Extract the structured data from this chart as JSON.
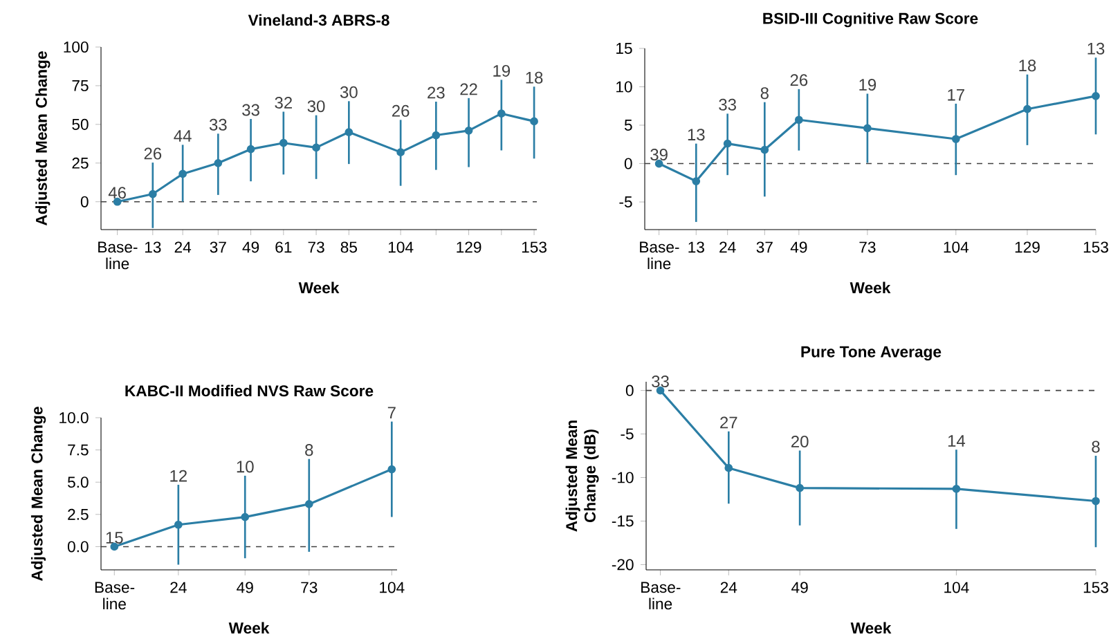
{
  "chart_data": [
    {
      "type": "line",
      "title": "Vineland-3 ABRS-8",
      "xlabel": "Week",
      "ylabel": "Adjusted Mean Change",
      "marker": "circle",
      "line_style": "solid",
      "x": [
        0,
        13,
        24,
        37,
        49,
        61,
        73,
        85,
        104,
        117,
        129,
        141,
        153
      ],
      "xlim": [
        -6,
        154
      ],
      "xticks": [
        {
          "value": 0,
          "label": "Base-line"
        },
        13,
        24,
        37,
        49,
        61,
        73,
        85,
        104,
        {
          "value": 117,
          "label": null
        },
        129,
        {
          "value": 141,
          "label": null
        },
        153
      ],
      "ylim": [
        -18,
        100
      ],
      "yticks": [
        0,
        25,
        50,
        75,
        100
      ],
      "series": [
        {
          "color": "#2b7ea5",
          "values": [
            0,
            5,
            18,
            25,
            34,
            38,
            35,
            45,
            32,
            43,
            46,
            57,
            52
          ],
          "errors": [
            null,
            [
              -17,
              25.3
            ],
            [
              0,
              36.8
            ],
            [
              4.4,
              44
            ],
            [
              13.2,
              53.5
            ],
            [
              17.6,
              58.2
            ],
            [
              14.7,
              55.9
            ],
            [
              24.4,
              65
            ],
            [
              10.3,
              52.9
            ],
            [
              20.6,
              64.7
            ],
            [
              22.4,
              67
            ],
            [
              33.2,
              78.8
            ],
            [
              27.9,
              74.4
            ]
          ]
        }
      ],
      "ref_lines": [
        {
          "axis": "y",
          "value": 0,
          "line_style": "dashed"
        }
      ],
      "annotations": [
        {
          "text": "46",
          "x": 0,
          "y": 0
        },
        {
          "text": "26",
          "x": 13,
          "y": 25.3
        },
        {
          "text": "44",
          "x": 24,
          "y": 36.8
        },
        {
          "text": "33",
          "x": 37,
          "y": 44
        },
        {
          "text": "33",
          "x": 49,
          "y": 53.5
        },
        {
          "text": "32",
          "x": 61,
          "y": 58.2
        },
        {
          "text": "30",
          "x": 73,
          "y": 55.9
        },
        {
          "text": "30",
          "x": 85,
          "y": 65
        },
        {
          "text": "26",
          "x": 104,
          "y": 52.9
        },
        {
          "text": "23",
          "x": 117,
          "y": 64.7
        },
        {
          "text": "22",
          "x": 129,
          "y": 67
        },
        {
          "text": "19",
          "x": 141,
          "y": 78.8
        },
        {
          "text": "18",
          "x": 153,
          "y": 74.4
        }
      ]
    },
    {
      "type": "line",
      "title": "BSID-III Cognitive Raw Score",
      "xlabel": "Week",
      "marker": "circle",
      "line_style": "solid",
      "x": [
        0,
        13,
        24,
        37,
        49,
        73,
        104,
        129,
        153
      ],
      "xlim": [
        -5,
        153
      ],
      "xticks": [
        {
          "value": 0,
          "label": "Base-line"
        },
        13,
        24,
        37,
        49,
        73,
        104,
        129,
        153
      ],
      "ylim": [
        -8.6,
        15
      ],
      "yticks": [
        -5,
        0,
        5,
        10,
        15
      ],
      "series": [
        {
          "color": "#2b7ea5",
          "values": [
            0,
            -2.3,
            2.6,
            1.8,
            5.7,
            4.6,
            3.2,
            7.1,
            8.8
          ],
          "errors": [
            null,
            [
              -7.6,
              2.6
            ],
            [
              -1.5,
              6.5
            ],
            [
              -4.3,
              8.0
            ],
            [
              1.7,
              9.7
            ],
            [
              0.1,
              9.1
            ],
            [
              -1.5,
              7.8
            ],
            [
              2.4,
              11.6
            ],
            [
              3.8,
              13.8
            ]
          ]
        }
      ],
      "ref_lines": [
        {
          "axis": "y",
          "value": 0,
          "line_style": "dashed"
        }
      ],
      "annotations": [
        {
          "text": "39",
          "x": 0,
          "y": 0
        },
        {
          "text": "13",
          "x": 13,
          "y": 2.6
        },
        {
          "text": "33",
          "x": 24,
          "y": 6.5
        },
        {
          "text": "8",
          "x": 37,
          "y": 8.0
        },
        {
          "text": "26",
          "x": 49,
          "y": 9.7
        },
        {
          "text": "19",
          "x": 73,
          "y": 9.1
        },
        {
          "text": "17",
          "x": 104,
          "y": 7.8
        },
        {
          "text": "18",
          "x": 129,
          "y": 11.6
        },
        {
          "text": "13",
          "x": 153,
          "y": 13.8
        }
      ]
    },
    {
      "type": "line",
      "title": "KABC-II Modified NVS Raw Score",
      "xlabel": "Week",
      "ylabel": "Adjusted Mean Change",
      "marker": "circle",
      "line_style": "solid",
      "x": [
        0,
        24,
        49,
        73,
        104
      ],
      "xlim": [
        -5,
        106
      ],
      "xticks": [
        {
          "value": 0,
          "label": "Base-line"
        },
        24,
        49,
        73,
        104
      ],
      "ylim": [
        -1.8,
        10
      ],
      "yticks": [
        {
          "value": 0,
          "label": "0.0"
        },
        2.5,
        {
          "value": 5,
          "label": "5.0"
        },
        7.5,
        {
          "value": 10,
          "label": "10.0"
        }
      ],
      "series": [
        {
          "color": "#2b7ea5",
          "values": [
            0,
            1.7,
            2.3,
            3.3,
            6.0
          ],
          "errors": [
            null,
            [
              -1.4,
              4.8
            ],
            [
              -0.9,
              5.5
            ],
            [
              -0.4,
              6.8
            ],
            [
              2.3,
              9.7
            ]
          ]
        }
      ],
      "ref_lines": [
        {
          "axis": "y",
          "value": 0,
          "line_style": "dashed"
        }
      ],
      "annotations": [
        {
          "text": "15",
          "x": 0,
          "y": 0
        },
        {
          "text": "12",
          "x": 24,
          "y": 4.8
        },
        {
          "text": "10",
          "x": 49,
          "y": 5.5
        },
        {
          "text": "8",
          "x": 73,
          "y": 6.8
        },
        {
          "text": "7",
          "x": 104,
          "y": 9.7
        }
      ]
    },
    {
      "type": "line",
      "title": "Pure Tone Average",
      "xlabel": "Week",
      "ylabel": "Adjusted Mean Change (dB)",
      "marker": "circle",
      "line_style": "solid",
      "x": [
        0,
        24,
        49,
        104,
        153
      ],
      "xlim": [
        -5,
        153
      ],
      "xticks": [
        {
          "value": 0,
          "label": "Base-line"
        },
        24,
        49,
        104,
        153
      ],
      "ylim": [
        -20.6,
        1
      ],
      "yticks": [
        -20,
        -15,
        -10,
        -5,
        0
      ],
      "series": [
        {
          "color": "#2b7ea5",
          "values": [
            0,
            -8.9,
            -11.2,
            -11.3,
            -12.7
          ],
          "errors": [
            null,
            [
              -13.0,
              -4.7
            ],
            [
              -15.5,
              -6.9
            ],
            [
              -15.9,
              -6.8
            ],
            [
              -18,
              -7.5
            ]
          ]
        }
      ],
      "ref_lines": [
        {
          "axis": "y",
          "value": 0,
          "line_style": "dashed"
        }
      ],
      "annotations": [
        {
          "text": "33",
          "x": 0,
          "y": 0
        },
        {
          "text": "27",
          "x": 24,
          "y": -4.7
        },
        {
          "text": "20",
          "x": 49,
          "y": -6.9
        },
        {
          "text": "14",
          "x": 104,
          "y": -6.8
        },
        {
          "text": "8",
          "x": 153,
          "y": -7.5
        }
      ]
    }
  ]
}
